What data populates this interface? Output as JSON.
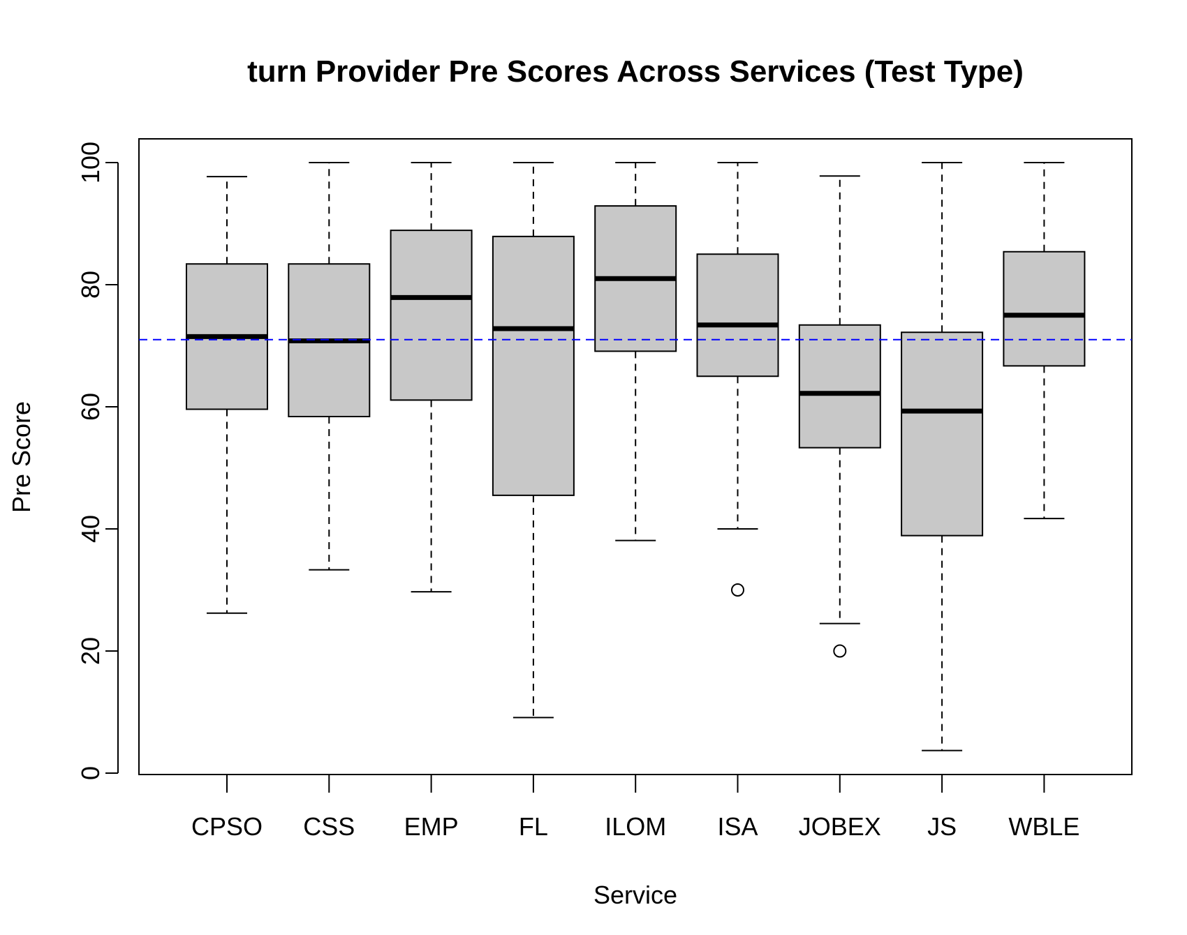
{
  "chart_data": {
    "type": "boxplot",
    "title": "turn Provider Pre Scores Across Services (Test Type)",
    "xlabel": "Service",
    "ylabel": "Pre Score",
    "ylim": [
      0,
      100
    ],
    "yticks": [
      "0",
      "20",
      "40",
      "60",
      "80",
      "100"
    ],
    "reference_line": {
      "y": 71,
      "color": "#0000ff",
      "style": "dashed"
    },
    "box_fill": "#c8c8c8",
    "grid": false,
    "legend": "none",
    "categories": [
      "CPSO",
      "CSS",
      "EMP",
      "FL",
      "ILOM",
      "ISA",
      "JOBEX",
      "JS",
      "WBLE"
    ],
    "boxes": [
      {
        "category": "CPSO",
        "whisker_low": 26.2,
        "q1": 59.6,
        "median": 71.5,
        "q3": 83.4,
        "whisker_high": 97.7,
        "outliers": []
      },
      {
        "category": "CSS",
        "whisker_low": 33.3,
        "q1": 58.4,
        "median": 70.8,
        "q3": 83.4,
        "whisker_high": 100,
        "outliers": []
      },
      {
        "category": "EMP",
        "whisker_low": 29.7,
        "q1": 61.1,
        "median": 77.9,
        "q3": 88.9,
        "whisker_high": 100,
        "outliers": []
      },
      {
        "category": "FL",
        "whisker_low": 9.1,
        "q1": 45.5,
        "median": 72.8,
        "q3": 87.9,
        "whisker_high": 100,
        "outliers": []
      },
      {
        "category": "ILOM",
        "whisker_low": 38.1,
        "q1": 69.1,
        "median": 81.0,
        "q3": 92.9,
        "whisker_high": 100,
        "outliers": []
      },
      {
        "category": "ISA",
        "whisker_low": 40.0,
        "q1": 65.0,
        "median": 73.4,
        "q3": 85.0,
        "whisker_high": 100,
        "outliers": [
          30
        ]
      },
      {
        "category": "JOBEX",
        "whisker_low": 24.5,
        "q1": 53.3,
        "median": 62.2,
        "q3": 73.4,
        "whisker_high": 97.8,
        "outliers": [
          20
        ]
      },
      {
        "category": "JS",
        "whisker_low": 3.7,
        "q1": 38.9,
        "median": 59.3,
        "q3": 72.2,
        "whisker_high": 100,
        "outliers": []
      },
      {
        "category": "WBLE",
        "whisker_low": 41.7,
        "q1": 66.7,
        "median": 75.0,
        "q3": 85.4,
        "whisker_high": 100,
        "outliers": []
      }
    ]
  }
}
